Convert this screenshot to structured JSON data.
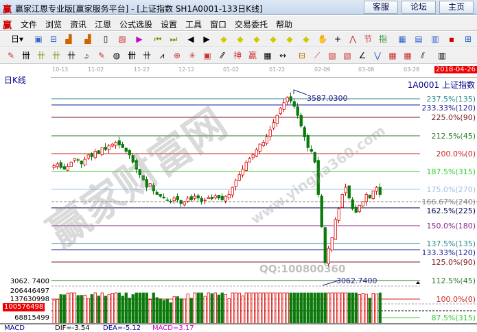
{
  "window": {
    "title": "赢家江恩专业版[赢家服务平台] - [上证指数  SH1A0001-133日K线]",
    "buttons": [
      "客服",
      "论坛",
      "主页"
    ]
  },
  "menu": [
    "文件",
    "浏览",
    "资讯",
    "江恩",
    "公式选股",
    "设置",
    "工具",
    "窗口",
    "交易委托",
    "帮助"
  ],
  "toolbar": {
    "period_label": "日"
  },
  "chart": {
    "period": "日K线",
    "code": "1A0001 上证指数",
    "current_date": "2018-04-26",
    "dates": [
      "10-13",
      "11-02",
      "11-22",
      "12-12",
      "01-02",
      "01-22",
      "02-09",
      "03-08",
      "03-28"
    ],
    "high_label": "3587.0300",
    "low_label": "3062.7400",
    "low_axis_label": "3062. 7400",
    "watermark": "QQ:100800360",
    "colors": {
      "up": "#dd0000",
      "down": "#0a7a0a"
    },
    "fib_levels": [
      {
        "label": "237.5%(135)",
        "color": "#2a8a8a"
      },
      {
        "label": "233.33%(120)",
        "color": "#1a1a9a"
      },
      {
        "label": "225.0%(90)",
        "color": "#7a1a1a"
      },
      {
        "label": "212.5%(45)",
        "color": "#2a7a2a"
      },
      {
        "label": "200.0%(0)",
        "color": "#cc2222"
      },
      {
        "label": "187.5%(315)",
        "color": "#33cc33"
      },
      {
        "label": "175.0%(270)",
        "color": "#a0c0e0"
      },
      {
        "label": "166.67%(240)",
        "color": "#888888"
      },
      {
        "label": "162.5%(225)",
        "color": "#000050"
      },
      {
        "label": "150.0%(180)",
        "color": "#882288"
      },
      {
        "label": "137.5%(135)",
        "color": "#2a8a8a"
      },
      {
        "label": "133.33%(120)",
        "color": "#1a1a9a"
      },
      {
        "label": "125.0%(90)",
        "color": "#7a1a1a"
      },
      {
        "label": "112.5%(45)",
        "color": "#2a7a2a"
      },
      {
        "label": "100.0%(0)",
        "color": "#cc2222"
      },
      {
        "label": "87.5%(315)",
        "color": "#33cc33"
      }
    ],
    "closes": [
      3380,
      3385,
      3375,
      3370,
      3378,
      3390,
      3400,
      3395,
      3385,
      3398,
      3410,
      3405,
      3420,
      3415,
      3430,
      3425,
      3435,
      3440,
      3445,
      3438,
      3430,
      3420,
      3410,
      3390,
      3370,
      3355,
      3340,
      3320,
      3330,
      3310,
      3300,
      3295,
      3290,
      3285,
      3280,
      3290,
      3285,
      3275,
      3280,
      3290,
      3285,
      3295,
      3290,
      3280,
      3285,
      3292,
      3288,
      3296,
      3290,
      3285,
      3295,
      3300,
      3320,
      3340,
      3355,
      3370,
      3390,
      3400,
      3410,
      3425,
      3440,
      3445,
      3460,
      3480,
      3500,
      3520,
      3540,
      3555,
      3570,
      3560,
      3545,
      3520,
      3490,
      3460,
      3430,
      3420,
      3390,
      3300,
      3210,
      3110,
      3150,
      3180,
      3230,
      3260,
      3300,
      3320,
      3290,
      3260,
      3250,
      3270,
      3280,
      3300,
      3290,
      3310,
      3320,
      3300
    ],
    "volume_labels": [
      "206446497",
      "137630998",
      "68815499"
    ],
    "volume_current": "100576498"
  },
  "macd": {
    "name": "MACD",
    "dif": "DIF=-3.54",
    "dea": "DEA=-5.12",
    "macd": "MACD=3.17"
  }
}
